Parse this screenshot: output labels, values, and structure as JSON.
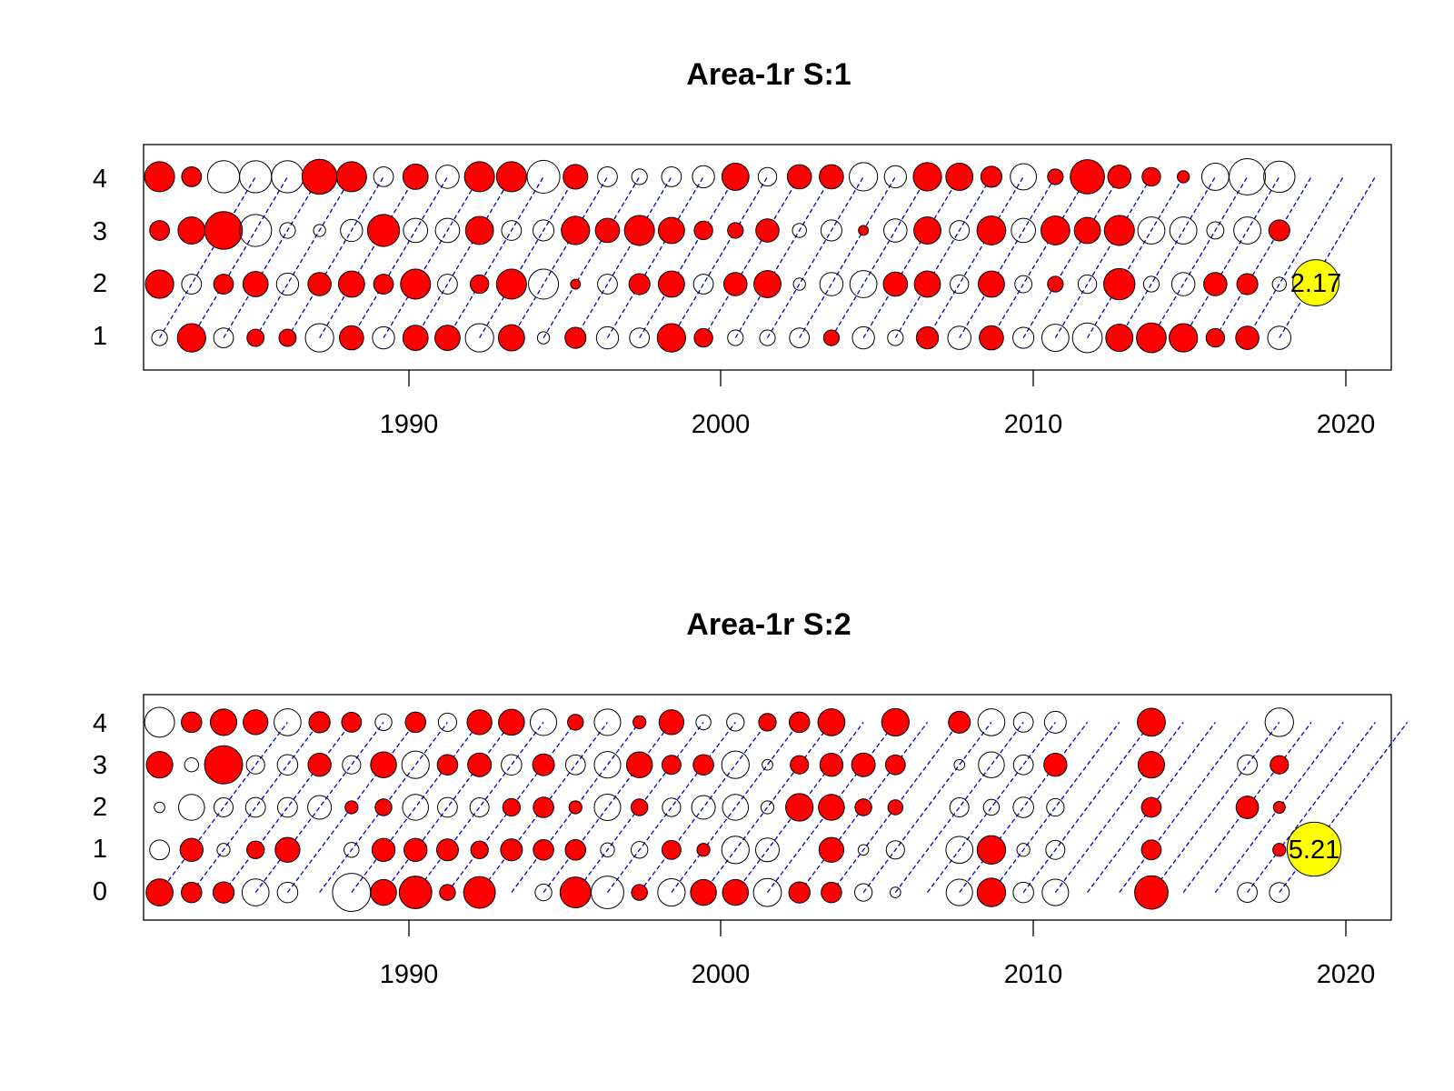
{
  "figure": {
    "background": "#ffffff"
  },
  "chart_data": [
    {
      "type": "bubble",
      "title": "Area-1r S:1",
      "xlabel": "",
      "ylabel": "",
      "x_ticks": [
        1990,
        2000,
        2010,
        2020
      ],
      "y_ticks": [
        1,
        2,
        3,
        4
      ],
      "xlim": [
        1982.5,
        2021.5
      ],
      "ylim": [
        0.4,
        4.6
      ],
      "grid": false,
      "positive_color": "#ff0000",
      "negative_color": "none",
      "cohort_line_color": "#0000cc",
      "years": [
        1983,
        1984,
        1985,
        1986,
        1987,
        1988,
        1989,
        1990,
        1991,
        1992,
        1993,
        1994,
        1995,
        1996,
        1997,
        1998,
        1999,
        2000,
        2001,
        2002,
        2003,
        2004,
        2005,
        2006,
        2007,
        2008,
        2009,
        2010,
        2011,
        2012,
        2013,
        2014,
        2015,
        2016,
        2017,
        2018
      ],
      "ages": [
        1,
        2,
        3,
        4
      ],
      "residuals": [
        [
          -0.25,
          0.82,
          0.4,
          0.92
        ],
        [
          0.82,
          -0.4,
          0.75,
          0.4
        ],
        [
          -0.4,
          0.4,
          1.45,
          -1.05
        ],
        [
          0.3,
          0.65,
          -1.05,
          -1.05
        ],
        [
          0.3,
          -0.5,
          -0.25,
          -1.05
        ],
        [
          -0.82,
          0.55,
          -0.15,
          1.25
        ],
        [
          0.6,
          0.7,
          -0.5,
          0.92
        ],
        [
          -0.5,
          0.4,
          1.05,
          -0.4
        ],
        [
          0.65,
          0.92,
          -0.6,
          0.65
        ],
        [
          0.65,
          -0.4,
          -0.6,
          -0.55
        ],
        [
          -0.82,
          0.35,
          0.8,
          0.92
        ],
        [
          0.7,
          0.92,
          -0.4,
          0.92
        ],
        [
          -0.15,
          -0.92,
          -0.45,
          -1.1
        ],
        [
          0.45,
          0.1,
          0.82,
          0.62
        ],
        [
          -0.5,
          -0.4,
          0.6,
          -0.4
        ],
        [
          -0.4,
          0.45,
          0.92,
          -0.25
        ],
        [
          0.82,
          0.7,
          0.7,
          -0.4
        ],
        [
          0.35,
          -0.4,
          0.35,
          -0.5
        ],
        [
          -0.25,
          0.55,
          0.25,
          0.75
        ],
        [
          -0.25,
          0.75,
          0.55,
          -0.35
        ],
        [
          -0.4,
          -0.15,
          -0.2,
          0.6
        ],
        [
          0.25,
          -0.55,
          -0.45,
          0.6
        ],
        [
          -0.5,
          -0.75,
          0.1,
          -0.82
        ],
        [
          -0.25,
          0.6,
          -0.55,
          -0.5
        ],
        [
          0.5,
          0.7,
          0.75,
          0.82
        ],
        [
          -0.55,
          -0.35,
          -0.4,
          0.75
        ],
        [
          0.6,
          0.7,
          0.85,
          0.45
        ],
        [
          -0.45,
          -0.3,
          -0.6,
          -0.7
        ],
        [
          -0.75,
          0.25,
          0.85,
          0.25
        ],
        [
          -0.9,
          -0.35,
          0.7,
          1.2
        ],
        [
          0.75,
          1.0,
          0.92,
          0.55
        ],
        [
          0.9,
          -0.25,
          -0.75,
          0.35
        ],
        [
          0.82,
          -0.55,
          -0.75,
          0.15
        ],
        [
          0.35,
          0.55,
          -0.3,
          -0.75
        ],
        [
          0.55,
          0.45,
          -0.75,
          -1.35
        ],
        [
          -0.55,
          -0.2,
          0.45,
          -1.0
        ]
      ],
      "legend": {
        "value": "2.17",
        "color": "#ffff00",
        "position": "right",
        "age": 2
      }
    },
    {
      "type": "bubble",
      "title": "Area-1r S:2",
      "xlabel": "",
      "ylabel": "",
      "x_ticks": [
        1990,
        2000,
        2010,
        2020
      ],
      "y_ticks": [
        0,
        1,
        2,
        3,
        4
      ],
      "xlim": [
        1982.5,
        2021.5
      ],
      "ylim": [
        -0.65,
        4.65
      ],
      "grid": false,
      "positive_color": "#ff0000",
      "negative_color": "none",
      "cohort_line_color": "#0000cc",
      "years": [
        1983,
        1984,
        1985,
        1986,
        1987,
        1988,
        1989,
        1990,
        1991,
        1992,
        1993,
        1994,
        1995,
        1996,
        1997,
        1998,
        1999,
        2000,
        2001,
        2002,
        2003,
        2004,
        2005,
        2006,
        2007,
        2008,
        2009,
        2010,
        2011,
        2012,
        2013,
        2014,
        2015,
        2016,
        2017,
        2018
      ],
      "ages": [
        0,
        1,
        2,
        3,
        4
      ],
      "residuals": [
        [
          1.3,
          -0.7,
          -0.2,
          1.25,
          -1.6
        ],
        [
          0.75,
          0.95,
          -1.2,
          -0.35,
          0.75
        ],
        [
          0.8,
          -0.3,
          -0.65,
          2.6,
          1.25
        ],
        [
          -1.3,
          0.55,
          -0.7,
          -0.6,
          1.1
        ],
        [
          -0.75,
          1.1,
          -0.7,
          -0.75,
          -1.3
        ],
        [
          0,
          0,
          -1.0,
          0.95,
          0.8
        ],
        [
          -2.6,
          -0.4,
          0.3,
          -0.6,
          0.7
        ],
        [
          1.2,
          0.95,
          0.5,
          1.2,
          -0.5
        ],
        [
          1.9,
          0.95,
          -1.2,
          -1.35,
          0.75
        ],
        [
          0.45,
          0.85,
          -0.7,
          0.75,
          -0.6
        ],
        [
          1.8,
          0.55,
          -0.65,
          1.0,
          1.1
        ],
        [
          0,
          0.85,
          0.55,
          -0.75,
          1.2
        ],
        [
          -0.5,
          0.75,
          0.75,
          0.85,
          -1.25
        ],
        [
          1.7,
          0.75,
          0.3,
          -0.7,
          0.45
        ],
        [
          -1.9,
          -0.35,
          -1.25,
          -1.25,
          -1.25
        ],
        [
          0.45,
          -0.5,
          0.5,
          1.2,
          0.3
        ],
        [
          -1.35,
          0.65,
          -0.6,
          0.65,
          1.1
        ],
        [
          1.2,
          0.3,
          -1.0,
          0.75,
          -0.4
        ],
        [
          1.2,
          -1.35,
          -1.2,
          -1.35,
          -0.55
        ],
        [
          -1.4,
          -1.0,
          -0.3,
          -0.2,
          0.55
        ],
        [
          0.8,
          0,
          1.35,
          0.6,
          0.75
        ],
        [
          0.75,
          1.1,
          1.2,
          0.95,
          1.3
        ],
        [
          -0.55,
          -0.2,
          0.5,
          1.0,
          0
        ],
        [
          -0.2,
          -0.6,
          0.4,
          0.7,
          1.35
        ],
        [
          0,
          0,
          0,
          0,
          0
        ],
        [
          -1.25,
          -1.3,
          -0.65,
          -0.2,
          0.85
        ],
        [
          1.45,
          1.45,
          -0.45,
          -1.2,
          -1.3
        ],
        [
          -0.75,
          -0.3,
          -0.75,
          -0.7,
          -0.7
        ],
        [
          -1.25,
          -0.65,
          -0.55,
          0.95,
          -0.85
        ],
        [
          0,
          0,
          0,
          0,
          0
        ],
        [
          0,
          0,
          0,
          0,
          0
        ],
        [
          2.0,
          0.7,
          0.7,
          1.25,
          1.4
        ],
        [
          0,
          0,
          0,
          0,
          0
        ],
        [
          0,
          0,
          0,
          0,
          0
        ],
        [
          -0.7,
          0,
          0.9,
          -0.7,
          0
        ],
        [
          -0.7,
          0.3,
          0.25,
          0.6,
          -1.45
        ]
      ],
      "legend": {
        "value": "5.21",
        "color": "#ffff00",
        "position": "right",
        "age": 1
      }
    }
  ]
}
